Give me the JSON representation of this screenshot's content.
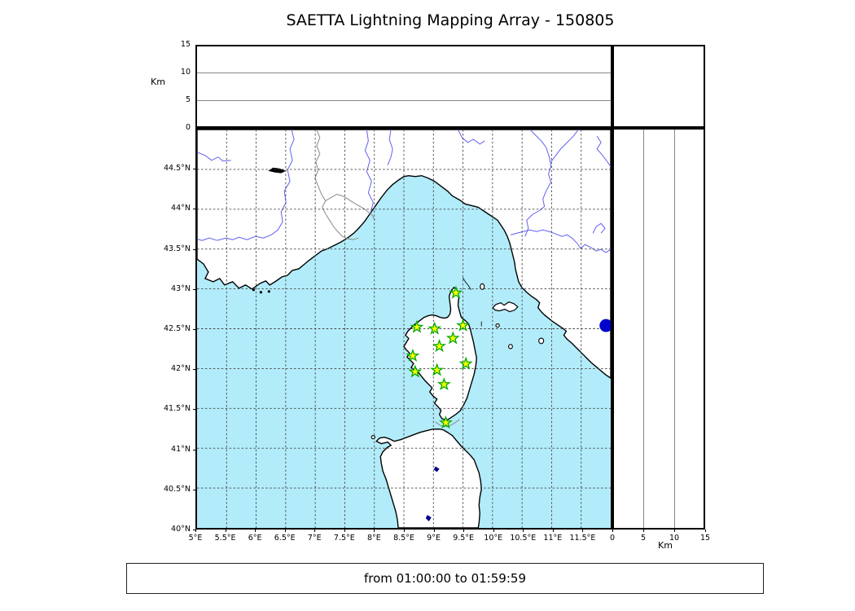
{
  "title": "SAETTA Lightning Mapping Array - 150805",
  "footer": {
    "text": "from 01:00:00 to 01:59:59"
  },
  "colors": {
    "sea": "#b2ecfa",
    "land": "#ffffff",
    "coast": "#000000",
    "river": "#6060ee",
    "country_border": "#8a8a8a",
    "grid": "#444444",
    "panel_gridline": "#888888",
    "station_fill": "#ffff00",
    "station_edge": "#00aa00",
    "source_fill": "#0000cc",
    "lake": "#000000",
    "lake_blue": "#00008b"
  },
  "chart_data": {
    "type": "scatter",
    "title": "SAETTA Lightning Mapping Array - 150805",
    "time_window": "from 01:00:00 to 01:59:59",
    "grid": true,
    "map_panel": {
      "lon_range": [
        5,
        12
      ],
      "lat_range": [
        40,
        45
      ],
      "xticks": [
        {
          "label": "5°E",
          "v": 5
        },
        {
          "label": "5.5°E",
          "v": 5.5
        },
        {
          "label": "6°E",
          "v": 6
        },
        {
          "label": "6.5°E",
          "v": 6.5
        },
        {
          "label": "7°E",
          "v": 7
        },
        {
          "label": "7.5°E",
          "v": 7.5
        },
        {
          "label": "8°E",
          "v": 8
        },
        {
          "label": "8.5°E",
          "v": 8.5
        },
        {
          "label": "9°E",
          "v": 9
        },
        {
          "label": "9.5°E",
          "v": 9.5
        },
        {
          "label": "10°E",
          "v": 10
        },
        {
          "label": "10.5°E",
          "v": 10.5
        },
        {
          "label": "11°E",
          "v": 11
        },
        {
          "label": "11.5°E",
          "v": 11.5
        }
      ],
      "yticks": [
        {
          "label": "44.5°N",
          "v": 44.5
        },
        {
          "label": "44°N",
          "v": 44
        },
        {
          "label": "43.5°N",
          "v": 43.5
        },
        {
          "label": "43°N",
          "v": 43
        },
        {
          "label": "42.5°N",
          "v": 42.5
        },
        {
          "label": "42°N",
          "v": 42
        },
        {
          "label": "41.5°N",
          "v": 41.5
        },
        {
          "label": "41°N",
          "v": 41
        },
        {
          "label": "40.5°N",
          "v": 40.5
        },
        {
          "label": "40°N",
          "v": 40
        }
      ]
    },
    "alt_panel_top": {
      "axis_label": "Km",
      "range": [
        0,
        15
      ],
      "gridlines_km": [
        5,
        10
      ],
      "ticks": [
        {
          "label": "15",
          "v": 15
        },
        {
          "label": "10",
          "v": 10
        },
        {
          "label": "5",
          "v": 5
        },
        {
          "label": "0",
          "v": 0
        }
      ]
    },
    "alt_panel_right": {
      "axis_label": "Km",
      "range": [
        0,
        15
      ],
      "gridlines_km": [
        5,
        10
      ],
      "ticks": [
        {
          "label": "0",
          "v": 0
        },
        {
          "label": "5",
          "v": 5
        },
        {
          "label": "10",
          "v": 10
        },
        {
          "label": "15",
          "v": 15
        }
      ]
    },
    "stations_lon_lat": [
      [
        9.38,
        42.95
      ],
      [
        8.72,
        42.52
      ],
      [
        9.02,
        42.5
      ],
      [
        9.5,
        42.54
      ],
      [
        9.33,
        42.38
      ],
      [
        9.1,
        42.28
      ],
      [
        8.65,
        42.16
      ],
      [
        9.55,
        42.06
      ],
      [
        8.69,
        41.96
      ],
      [
        9.06,
        41.98
      ],
      [
        9.18,
        41.8
      ],
      [
        9.21,
        41.32
      ]
    ],
    "source_points_lon_lat": [
      [
        11.92,
        42.54
      ]
    ],
    "markers": {
      "station": "star",
      "source": "filled-circle"
    }
  }
}
